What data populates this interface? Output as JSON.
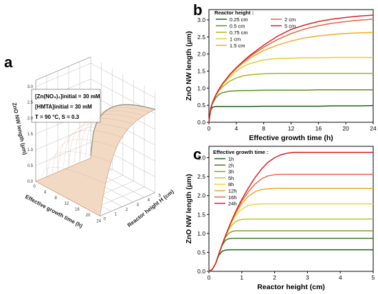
{
  "panels": {
    "a": "a",
    "b": "b",
    "c": "c"
  },
  "colors": {
    "surface_light": "#f2d9c4",
    "surface_dark": "#c98f6b",
    "surface_top": "#8a8a8a"
  },
  "chart_data": [
    {
      "panel": "a",
      "type": "area",
      "subtype": "surface3d",
      "title": "",
      "annotation_lines": [
        "[Zn(NO₃)₂]initial = 30 mM",
        "[HMTA]initial = 30 mM",
        "T = 90 °C, S = 0.3"
      ],
      "xlabel": "Effective growth time (h)",
      "ylabel": "Reactor height H (cm)",
      "zlabel": "ZnO NW length (μm)",
      "xticks": [
        "0",
        "4",
        "8",
        "12",
        "16",
        "20",
        "24"
      ],
      "yticks": [
        "0",
        "1",
        "2",
        "3",
        "4",
        "5"
      ],
      "zticks": [
        "0.0",
        "0.5",
        "1.0",
        "1.5",
        "2.0",
        "2.5",
        "3.0"
      ],
      "xlim": [
        0,
        24
      ],
      "ylim": [
        0,
        5
      ],
      "zlim": [
        0,
        3.2
      ],
      "grid": true
    },
    {
      "panel": "b",
      "type": "line",
      "xlabel": "Effective growth time (h)",
      "ylabel": "ZnO NW length (μm)",
      "xlim": [
        0,
        24
      ],
      "ylim": [
        0,
        3.3
      ],
      "xticks": [
        0,
        4,
        8,
        12,
        16,
        20,
        24
      ],
      "yticks": [
        0,
        0.5,
        1.0,
        1.5,
        2.0,
        2.5,
        3.0
      ],
      "legend_title": "Reactor height :",
      "legend_position": "top-left",
      "x": [
        0,
        0.25,
        0.5,
        1,
        1.5,
        2,
        3,
        4,
        5,
        6,
        8,
        10,
        12,
        14,
        16,
        18,
        20,
        22,
        24
      ],
      "series": [
        {
          "name": "0.25 cm",
          "color": "#1f5e1f",
          "values": [
            0,
            0.34,
            0.44,
            0.46,
            0.46,
            0.46,
            0.46,
            0.46,
            0.46,
            0.46,
            0.47,
            0.47,
            0.47,
            0.47,
            0.47,
            0.48,
            0.48,
            0.48,
            0.49
          ]
        },
        {
          "name": "0.5 cm",
          "color": "#5d8f1e",
          "values": [
            0,
            0.38,
            0.54,
            0.72,
            0.82,
            0.87,
            0.91,
            0.92,
            0.93,
            0.93,
            0.94,
            0.94,
            0.94,
            0.94,
            0.95,
            0.95,
            0.95,
            0.95,
            0.95
          ]
        },
        {
          "name": "0.75 cm",
          "color": "#a6b51e",
          "values": [
            0,
            0.39,
            0.56,
            0.78,
            0.93,
            1.04,
            1.2,
            1.3,
            1.36,
            1.39,
            1.42,
            1.43,
            1.43,
            1.43,
            1.43,
            1.43,
            1.43,
            1.43,
            1.43
          ]
        },
        {
          "name": "1 cm",
          "color": "#e7cc2a",
          "values": [
            0,
            0.39,
            0.56,
            0.79,
            0.96,
            1.1,
            1.32,
            1.5,
            1.63,
            1.72,
            1.83,
            1.87,
            1.88,
            1.89,
            1.89,
            1.9,
            1.9,
            1.9,
            1.9
          ]
        },
        {
          "name": "1.5 cm",
          "color": "#f4a81d",
          "values": [
            0,
            0.4,
            0.56,
            0.8,
            0.97,
            1.12,
            1.37,
            1.57,
            1.74,
            1.88,
            2.1,
            2.26,
            2.38,
            2.47,
            2.53,
            2.57,
            2.6,
            2.62,
            2.63
          ]
        },
        {
          "name": "2 cm",
          "color": "#e8613a",
          "values": [
            0,
            0.4,
            0.57,
            0.8,
            0.98,
            1.13,
            1.38,
            1.59,
            1.77,
            1.93,
            2.2,
            2.42,
            2.6,
            2.73,
            2.83,
            2.9,
            2.95,
            2.99,
            3.02
          ]
        },
        {
          "name": "5 cm",
          "color": "#d81f26",
          "values": [
            0,
            0.4,
            0.57,
            0.8,
            0.98,
            1.13,
            1.39,
            1.6,
            1.79,
            1.96,
            2.26,
            2.52,
            2.72,
            2.85,
            2.95,
            3.02,
            3.07,
            3.11,
            3.14
          ]
        }
      ]
    },
    {
      "panel": "c",
      "type": "line",
      "xlabel": "Reactor height (cm)",
      "ylabel": "ZnO NW length (μm)",
      "xlim": [
        0,
        5
      ],
      "ylim": [
        0,
        3.3
      ],
      "xticks": [
        0,
        1,
        2,
        3,
        4,
        5
      ],
      "yticks": [
        0,
        0.5,
        1.0,
        1.5,
        2.0,
        2.5,
        3.0
      ],
      "legend_title": "Effective growth time :",
      "legend_position": "top-left",
      "x": [
        0,
        0.1,
        0.2,
        0.3,
        0.4,
        0.5,
        0.6,
        0.7,
        0.8,
        0.9,
        1.0,
        1.2,
        1.4,
        1.6,
        1.8,
        2.0,
        2.2,
        2.4,
        2.6,
        3.0,
        4.0,
        5.0
      ],
      "series": [
        {
          "name": "1h",
          "color": "#1f5e1f",
          "values": [
            0,
            0.05,
            0.2,
            0.42,
            0.53,
            0.56,
            0.57,
            0.57,
            0.57,
            0.57,
            0.57,
            0.57,
            0.57,
            0.57,
            0.57,
            0.57,
            0.57,
            0.57,
            0.57,
            0.57,
            0.57,
            0.57
          ]
        },
        {
          "name": "2h",
          "color": "#3f7a1d",
          "values": [
            0,
            0.05,
            0.2,
            0.45,
            0.68,
            0.82,
            0.86,
            0.87,
            0.87,
            0.87,
            0.87,
            0.87,
            0.87,
            0.87,
            0.87,
            0.87,
            0.87,
            0.87,
            0.87,
            0.87,
            0.87,
            0.87
          ]
        },
        {
          "name": "3h",
          "color": "#7ba21e",
          "values": [
            0,
            0.05,
            0.2,
            0.45,
            0.7,
            0.9,
            1.0,
            1.05,
            1.07,
            1.07,
            1.07,
            1.07,
            1.07,
            1.07,
            1.07,
            1.07,
            1.07,
            1.07,
            1.07,
            1.07,
            1.07,
            1.07
          ]
        },
        {
          "name": "5h",
          "color": "#bcc51f",
          "values": [
            0,
            0.05,
            0.2,
            0.45,
            0.7,
            0.92,
            1.1,
            1.22,
            1.3,
            1.35,
            1.37,
            1.38,
            1.38,
            1.38,
            1.38,
            1.38,
            1.38,
            1.38,
            1.38,
            1.38,
            1.38,
            1.38
          ]
        },
        {
          "name": "8h",
          "color": "#f0d43a",
          "values": [
            0,
            0.05,
            0.2,
            0.45,
            0.7,
            0.93,
            1.13,
            1.3,
            1.45,
            1.56,
            1.64,
            1.74,
            1.77,
            1.78,
            1.78,
            1.78,
            1.78,
            1.78,
            1.78,
            1.78,
            1.78,
            1.78
          ]
        },
        {
          "name": "12h",
          "color": "#f5a623",
          "values": [
            0,
            0.05,
            0.2,
            0.45,
            0.7,
            0.93,
            1.14,
            1.33,
            1.5,
            1.65,
            1.78,
            1.98,
            2.1,
            2.16,
            2.18,
            2.19,
            2.19,
            2.19,
            2.19,
            2.19,
            2.19,
            2.19
          ]
        },
        {
          "name": "16h",
          "color": "#ea6a4a",
          "values": [
            0,
            0.05,
            0.2,
            0.45,
            0.7,
            0.93,
            1.15,
            1.35,
            1.53,
            1.7,
            1.85,
            2.1,
            2.3,
            2.44,
            2.52,
            2.55,
            2.56,
            2.56,
            2.56,
            2.56,
            2.56,
            2.56
          ]
        },
        {
          "name": "24h",
          "color": "#d81f26",
          "values": [
            0,
            0.05,
            0.2,
            0.45,
            0.7,
            0.93,
            1.15,
            1.36,
            1.55,
            1.73,
            1.9,
            2.2,
            2.47,
            2.7,
            2.88,
            3.0,
            3.08,
            3.12,
            3.14,
            3.14,
            3.14,
            3.14
          ]
        }
      ]
    }
  ]
}
